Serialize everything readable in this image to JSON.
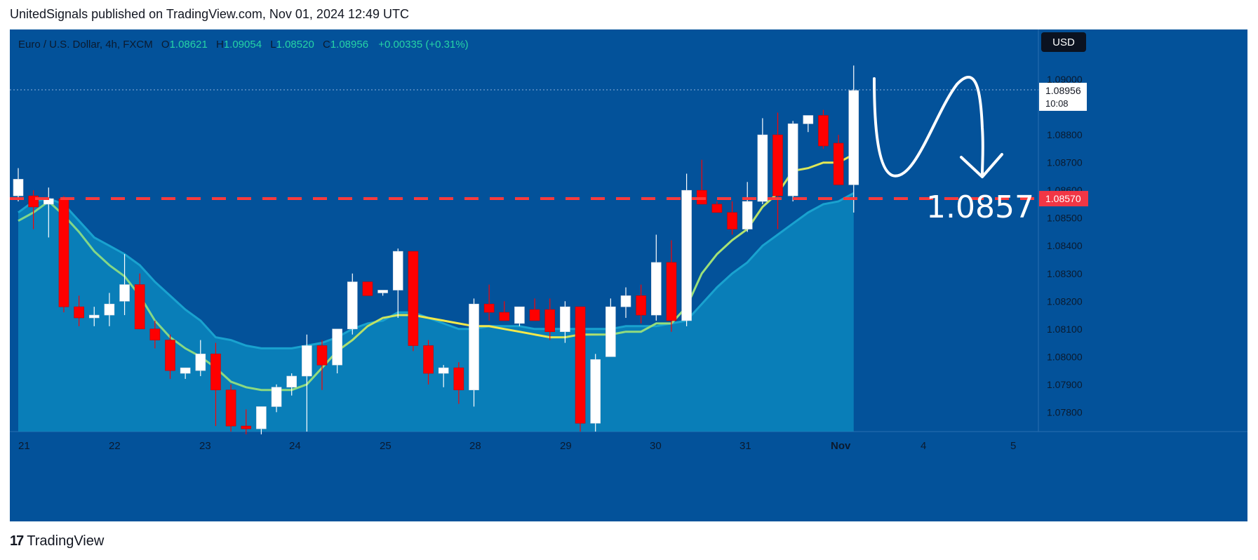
{
  "header": {
    "text": "UnitedSignals published on TradingView.com, Nov 01, 2024 12:49 UTC"
  },
  "legend": {
    "symbol": "Euro  / U.S. Dollar, 4h, FXCM",
    "open_label": "O",
    "open": "1.08621",
    "high_label": "H",
    "high": "1.09054",
    "low_label": "L",
    "low": "1.08520",
    "close_label": "C",
    "close": "1.08956",
    "change": "+0.00335 (+0.31%)"
  },
  "currency_button": "USD",
  "price_tag": {
    "price": "1.08956",
    "countdown": "10:08"
  },
  "level_tag": "1.08570",
  "annotation": "1.0857",
  "footer": {
    "brand": "TradingView"
  },
  "colors": {
    "background": "#03529a",
    "up": "#ffffff",
    "down": "#ff0000",
    "level": "#ff3b3b",
    "ema_fast": "#f5e94a",
    "ema_slow": "#1aa3c9"
  },
  "chart_data": {
    "type": "candlestick",
    "symbol": "EURUSD 4h FXCM",
    "ylim": [
      1.0773,
      1.0918
    ],
    "y_ticks": [
      1.078,
      1.079,
      1.08,
      1.081,
      1.082,
      1.083,
      1.084,
      1.085,
      1.086,
      1.087,
      1.088,
      1.09
    ],
    "x_labels": [
      "21",
      "22",
      "23",
      "24",
      "25",
      "28",
      "29",
      "30",
      "31",
      "Nov",
      "4",
      "5"
    ],
    "horizontal_level": 1.0857,
    "candles": [
      [
        1.0858,
        1.0868,
        1.0856,
        1.0864
      ],
      [
        1.0858,
        1.086,
        1.0846,
        1.0854
      ],
      [
        1.0855,
        1.0861,
        1.0843,
        1.0857
      ],
      [
        1.0857,
        1.0858,
        1.0816,
        1.0818
      ],
      [
        1.0818,
        1.0822,
        1.0811,
        1.0814
      ],
      [
        1.0814,
        1.0818,
        1.0811,
        1.0815
      ],
      [
        1.0815,
        1.0823,
        1.0811,
        1.0819
      ],
      [
        1.082,
        1.0837,
        1.0815,
        1.0826
      ],
      [
        1.0826,
        1.083,
        1.081,
        1.081
      ],
      [
        1.081,
        1.0813,
        1.0803,
        1.0806
      ],
      [
        1.0806,
        1.0808,
        1.0792,
        1.0795
      ],
      [
        1.0794,
        1.0796,
        1.0792,
        1.0796
      ],
      [
        1.0795,
        1.0806,
        1.0793,
        1.0801
      ],
      [
        1.0801,
        1.0805,
        1.0775,
        1.0788
      ],
      [
        1.0788,
        1.079,
        1.0773,
        1.0775
      ],
      [
        1.0775,
        1.0781,
        1.0772,
        1.0774
      ],
      [
        1.0774,
        1.0782,
        1.0772,
        1.0782
      ],
      [
        1.0782,
        1.079,
        1.078,
        1.0789
      ],
      [
        1.0789,
        1.0794,
        1.0786,
        1.0793
      ],
      [
        1.0793,
        1.0808,
        1.0773,
        1.0804
      ],
      [
        1.0804,
        1.0806,
        1.0788,
        1.0797
      ],
      [
        1.0797,
        1.081,
        1.0794,
        1.081
      ],
      [
        1.081,
        1.083,
        1.0808,
        1.0827
      ],
      [
        1.0827,
        1.0827,
        1.0822,
        1.0822
      ],
      [
        1.0823,
        1.0824,
        1.0822,
        1.0824
      ],
      [
        1.0824,
        1.0839,
        1.0814,
        1.0838
      ],
      [
        1.0838,
        1.0838,
        1.0802,
        1.0804
      ],
      [
        1.0804,
        1.0806,
        1.079,
        1.0794
      ],
      [
        1.0794,
        1.0797,
        1.0789,
        1.0796
      ],
      [
        1.0796,
        1.0798,
        1.0783,
        1.0788
      ],
      [
        1.0788,
        1.0821,
        1.0782,
        1.0819
      ],
      [
        1.0819,
        1.0826,
        1.0813,
        1.0816
      ],
      [
        1.0816,
        1.082,
        1.0813,
        1.0813
      ],
      [
        1.0812,
        1.0818,
        1.0811,
        1.0818
      ],
      [
        1.0817,
        1.0821,
        1.0813,
        1.0813
      ],
      [
        1.0817,
        1.0821,
        1.0806,
        1.0809
      ],
      [
        1.0809,
        1.082,
        1.0805,
        1.0818
      ],
      [
        1.0818,
        1.0818,
        1.0773,
        1.0776
      ],
      [
        1.0776,
        1.0801,
        1.0773,
        1.0799
      ],
      [
        1.08,
        1.0821,
        1.08,
        1.0818
      ],
      [
        1.0818,
        1.0825,
        1.0814,
        1.0822
      ],
      [
        1.0822,
        1.0826,
        1.0812,
        1.0815
      ],
      [
        1.0815,
        1.0844,
        1.0813,
        1.0834
      ],
      [
        1.0834,
        1.0842,
        1.0809,
        1.0813
      ],
      [
        1.0813,
        1.0866,
        1.0811,
        1.086
      ],
      [
        1.086,
        1.0871,
        1.0855,
        1.0855
      ],
      [
        1.0855,
        1.0856,
        1.0852,
        1.0852
      ],
      [
        1.0852,
        1.0856,
        1.0844,
        1.0846
      ],
      [
        1.0846,
        1.0863,
        1.0845,
        1.0856
      ],
      [
        1.0856,
        1.0886,
        1.0855,
        1.088
      ],
      [
        1.088,
        1.0888,
        1.0846,
        1.0858
      ],
      [
        1.0858,
        1.0885,
        1.0856,
        1.0884
      ],
      [
        1.0884,
        1.0887,
        1.0881,
        1.0887
      ],
      [
        1.0887,
        1.0889,
        1.0875,
        1.0876
      ],
      [
        1.0877,
        1.088,
        1.0862,
        1.0862
      ],
      [
        1.0862,
        1.0905,
        1.0852,
        1.0896
      ]
    ],
    "ema_fast": [
      1.0849,
      1.0852,
      1.0856,
      1.0851,
      1.0845,
      1.0838,
      1.0833,
      1.0829,
      1.0822,
      1.0813,
      1.0807,
      1.0803,
      1.08,
      1.0796,
      1.0791,
      1.0789,
      1.0788,
      1.0788,
      1.0788,
      1.079,
      1.0796,
      1.0802,
      1.0806,
      1.0811,
      1.0814,
      1.0815,
      1.0815,
      1.0814,
      1.0813,
      1.0812,
      1.0811,
      1.0811,
      1.081,
      1.0809,
      1.0808,
      1.0807,
      1.0807,
      1.0808,
      1.0808,
      1.0808,
      1.0809,
      1.0809,
      1.0812,
      1.0812,
      1.0818,
      1.083,
      1.0837,
      1.0842,
      1.0846,
      1.0854,
      1.0859,
      1.0867,
      1.0868,
      1.087,
      1.087,
      1.0873
    ],
    "ema_slow": [
      1.0852,
      1.0856,
      1.0857,
      1.0855,
      1.0849,
      1.0843,
      1.084,
      1.0837,
      1.0833,
      1.0827,
      1.0822,
      1.0817,
      1.0813,
      1.0807,
      1.0806,
      1.0804,
      1.0803,
      1.0803,
      1.0803,
      1.0804,
      1.0805,
      1.0807,
      1.081,
      1.0812,
      1.0813,
      1.0816,
      1.0816,
      1.0814,
      1.0812,
      1.081,
      1.081,
      1.0811,
      1.0811,
      1.0811,
      1.081,
      1.081,
      1.081,
      1.081,
      1.081,
      1.081,
      1.0811,
      1.0811,
      1.0811,
      1.0812,
      1.0813,
      1.0819,
      1.0825,
      1.083,
      1.0834,
      1.084,
      1.0844,
      1.0848,
      1.0852,
      1.0855,
      1.0856,
      1.0859
    ]
  }
}
